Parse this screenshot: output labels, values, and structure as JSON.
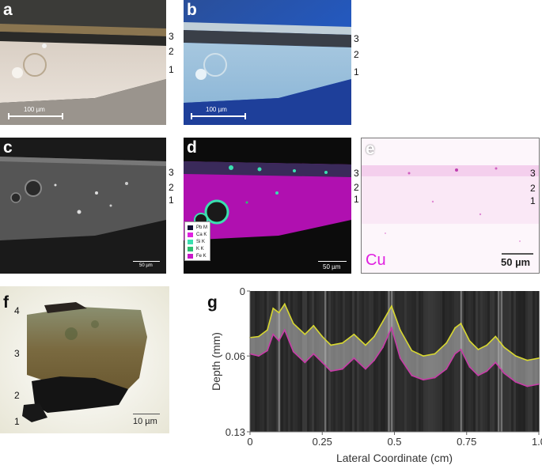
{
  "panels": {
    "a": {
      "label": "a",
      "layers": [
        "3",
        "2",
        "1"
      ],
      "scalebar": "100 µm"
    },
    "b": {
      "label": "b",
      "layers": [
        "3",
        "2",
        "1"
      ],
      "scalebar": "100 µm"
    },
    "c": {
      "label": "c",
      "layers": [
        "3",
        "2",
        "1"
      ],
      "scalebar": "50 µm"
    },
    "d": {
      "label": "d",
      "layers": [
        "3",
        "2",
        "1"
      ],
      "scalebar": "50 µm",
      "legend": [
        {
          "label": "Pb M",
          "color": "#111133"
        },
        {
          "label": "Ca K",
          "color": "#e020e0"
        },
        {
          "label": "Si K",
          "color": "#3ae0b0"
        },
        {
          "label": "K K",
          "color": "#2ec070"
        },
        {
          "label": "Fe K",
          "color": "#c818c8"
        }
      ]
    },
    "e": {
      "label": "e",
      "layers": [
        "3",
        "2",
        "1"
      ],
      "scalebar": "50 µm",
      "element": "Cu",
      "element_color": "#e020e0"
    },
    "f": {
      "label": "f",
      "layers": [
        "4",
        "3",
        "2",
        "1"
      ],
      "scalebar": "10 µm"
    },
    "g": {
      "label": "g"
    }
  },
  "chart_data": {
    "type": "line",
    "title": "",
    "xlabel": "Lateral Coordinate (cm)",
    "ylabel": "Depth (mm)",
    "xlim": [
      0,
      1.0
    ],
    "ylim": [
      0.13,
      0
    ],
    "xticks": [
      "0",
      "0.25",
      "0.5",
      "0.75",
      "1.0"
    ],
    "yticks": [
      "0",
      "0.06",
      "0.13"
    ],
    "series": [
      {
        "color": "#d8d830",
        "x": [
          0,
          0.03,
          0.06,
          0.08,
          0.1,
          0.12,
          0.15,
          0.19,
          0.22,
          0.25,
          0.28,
          0.32,
          0.36,
          0.4,
          0.43,
          0.46,
          0.49,
          0.52,
          0.56,
          0.6,
          0.64,
          0.68,
          0.71,
          0.73,
          0.76,
          0.79,
          0.82,
          0.85,
          0.88,
          0.92,
          0.96,
          1.0
        ],
        "y": [
          0.043,
          0.042,
          0.036,
          0.016,
          0.02,
          0.012,
          0.03,
          0.04,
          0.032,
          0.042,
          0.05,
          0.048,
          0.04,
          0.05,
          0.042,
          0.028,
          0.014,
          0.036,
          0.055,
          0.06,
          0.058,
          0.048,
          0.034,
          0.03,
          0.046,
          0.054,
          0.05,
          0.042,
          0.052,
          0.06,
          0.064,
          0.062
        ]
      },
      {
        "color": "#c83ca8",
        "x": [
          0,
          0.03,
          0.06,
          0.08,
          0.1,
          0.12,
          0.15,
          0.19,
          0.22,
          0.25,
          0.28,
          0.32,
          0.36,
          0.4,
          0.43,
          0.46,
          0.49,
          0.52,
          0.56,
          0.6,
          0.64,
          0.68,
          0.71,
          0.73,
          0.76,
          0.79,
          0.82,
          0.85,
          0.88,
          0.92,
          0.96,
          1.0
        ],
        "y": [
          0.058,
          0.06,
          0.055,
          0.04,
          0.046,
          0.036,
          0.056,
          0.066,
          0.058,
          0.066,
          0.074,
          0.072,
          0.062,
          0.072,
          0.064,
          0.052,
          0.034,
          0.062,
          0.078,
          0.082,
          0.08,
          0.072,
          0.058,
          0.054,
          0.07,
          0.078,
          0.074,
          0.066,
          0.076,
          0.084,
          0.088,
          0.086
        ]
      }
    ]
  }
}
